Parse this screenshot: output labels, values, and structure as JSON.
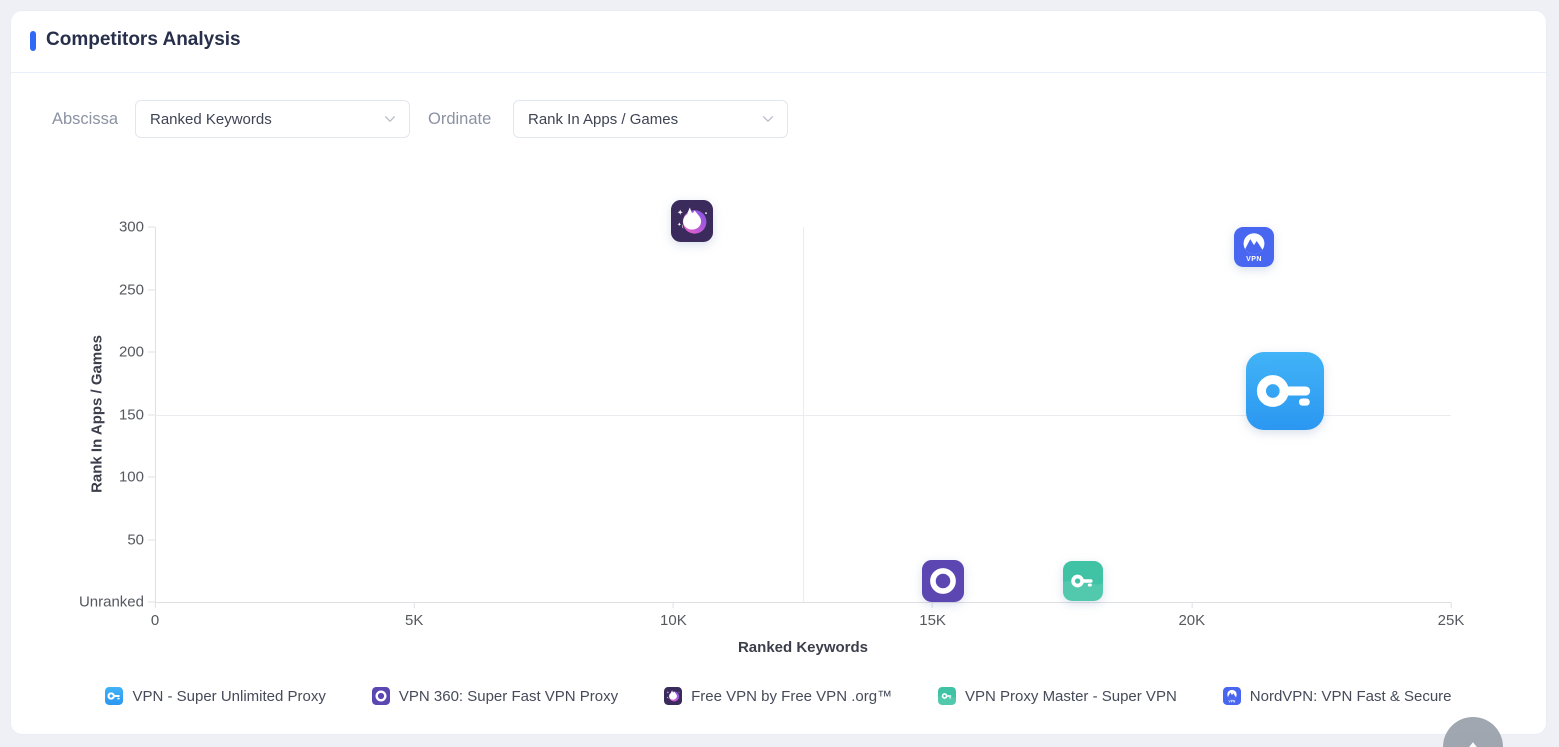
{
  "header": {
    "title": "Competitors Analysis"
  },
  "controls": {
    "abscissa_label": "Abscissa",
    "abscissa_value": "Ranked Keywords",
    "ordinate_label": "Ordinate",
    "ordinate_value": "Rank In Apps / Games"
  },
  "chart_data": {
    "type": "scatter",
    "xlabel": "Ranked Keywords",
    "ylabel": "Rank In Apps / Games",
    "xlim": [
      0,
      25000
    ],
    "ylim": [
      0,
      300
    ],
    "x_tick_values": [
      0,
      5000,
      10000,
      15000,
      20000,
      25000
    ],
    "x_tick_labels": [
      "0",
      "5K",
      "10K",
      "15K",
      "20K",
      "25K"
    ],
    "y_tick_values": [
      0,
      50,
      100,
      150,
      200,
      250,
      300
    ],
    "y_tick_labels": [
      "Unranked",
      "50",
      "100",
      "150",
      "200",
      "250",
      "300"
    ],
    "grid": "off",
    "reference_lines": {
      "x": 12500,
      "y": 150
    },
    "legend_position": "bottom",
    "points": [
      {
        "name": "VPN - Super Unlimited Proxy",
        "x": 21800,
        "y": 169,
        "icon": "super-unlimited-key-icon",
        "size": 78
      },
      {
        "name": "VPN 360: Super Fast VPN Proxy",
        "x": 15200,
        "y": 17,
        "icon": "vpn360-ring-icon",
        "size": 42
      },
      {
        "name": "Free VPN by Free VPN .org™",
        "x": 10350,
        "y": 305,
        "icon": "unicorn-icon",
        "size": 42
      },
      {
        "name": "VPN Proxy Master - Super VPN",
        "x": 17900,
        "y": 17,
        "icon": "proxy-master-key-icon",
        "size": 40
      },
      {
        "name": "NordVPN: VPN Fast & Secure",
        "x": 21200,
        "y": 284,
        "icon": "nordvpn-mountain-icon",
        "size": 40
      }
    ]
  },
  "legend": {
    "items": [
      {
        "label": "VPN - Super Unlimited Proxy",
        "icon": "super-unlimited-key-icon"
      },
      {
        "label": "VPN 360: Super Fast VPN Proxy",
        "icon": "vpn360-ring-icon"
      },
      {
        "label": "Free VPN by Free VPN .org™",
        "icon": "unicorn-icon"
      },
      {
        "label": "VPN Proxy Master - Super VPN",
        "icon": "proxy-master-key-icon"
      },
      {
        "label": "NordVPN: VPN Fast & Secure",
        "icon": "nordvpn-mountain-icon"
      }
    ]
  },
  "nordvpn_badge_text": "VPN",
  "icons": [
    "chevron-down-icon",
    "up-arrow-icon",
    "super-unlimited-key-icon",
    "vpn360-ring-icon",
    "unicorn-icon",
    "proxy-master-key-icon",
    "nordvpn-mountain-icon"
  ],
  "colors": {
    "accent": "#3069f6",
    "title_text": "#272f4b",
    "muted_label": "#8b92a2",
    "axis_text": "#55585f",
    "axis_line": "#dfe0e4",
    "reference_line": "#ececf0",
    "super_unlimited_blue": "#36a5f4",
    "vpn360_purple": "#5c47b2",
    "unicorn_bg_purple": "#3b2a5c",
    "proxy_master_teal": "#3fc3a4",
    "nordvpn_blue": "#4866ef",
    "scroll_button_gray": "#9aa0ab"
  }
}
